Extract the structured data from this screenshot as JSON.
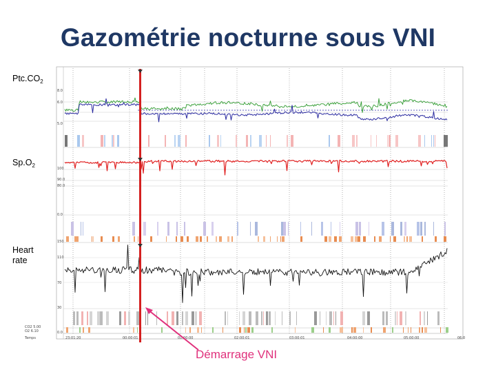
{
  "title": "Gazométrie nocturne sous VNI",
  "panel_labels": {
    "ptcco2": {
      "main": "Ptc.CO",
      "sub": "2"
    },
    "spo2": {
      "main": "Sp.O",
      "sub": "2"
    },
    "hr": {
      "line1": "Heart",
      "line2": "rate"
    }
  },
  "annotation": "Démarrage VNI",
  "colors": {
    "title": "#1f3864",
    "annotation": "#e0317c",
    "marker": "#d42020",
    "ptcco2_upper": "#2e9a2e",
    "ptcco2_lower": "#2a2aa0",
    "spo2": "#e02020",
    "hr": "#111111"
  },
  "chart_data": {
    "type": "line",
    "x_tick_labels": [
      "Temps",
      "23:01:20",
      "00:00:01",
      "01:00:00",
      "02:00:01",
      "03:00:01",
      "04:00:00",
      "05:00:00",
      "06:0"
    ],
    "event_marker_label": "Démarrage VNI",
    "panels": [
      {
        "name": "Ptc.CO2",
        "tick_labels": [
          "8.0",
          "6.0",
          "5.0"
        ]
      },
      {
        "name": "Sp.O2",
        "tick_labels": [
          "100",
          "90.0",
          "80.0",
          "0.0"
        ]
      },
      {
        "name": "Heart rate",
        "tick_labels": [
          "150",
          "110",
          "70",
          "30",
          "0.0"
        ]
      }
    ],
    "legend_text": [
      "CO2 5.00",
      "O2 6.10"
    ]
  }
}
